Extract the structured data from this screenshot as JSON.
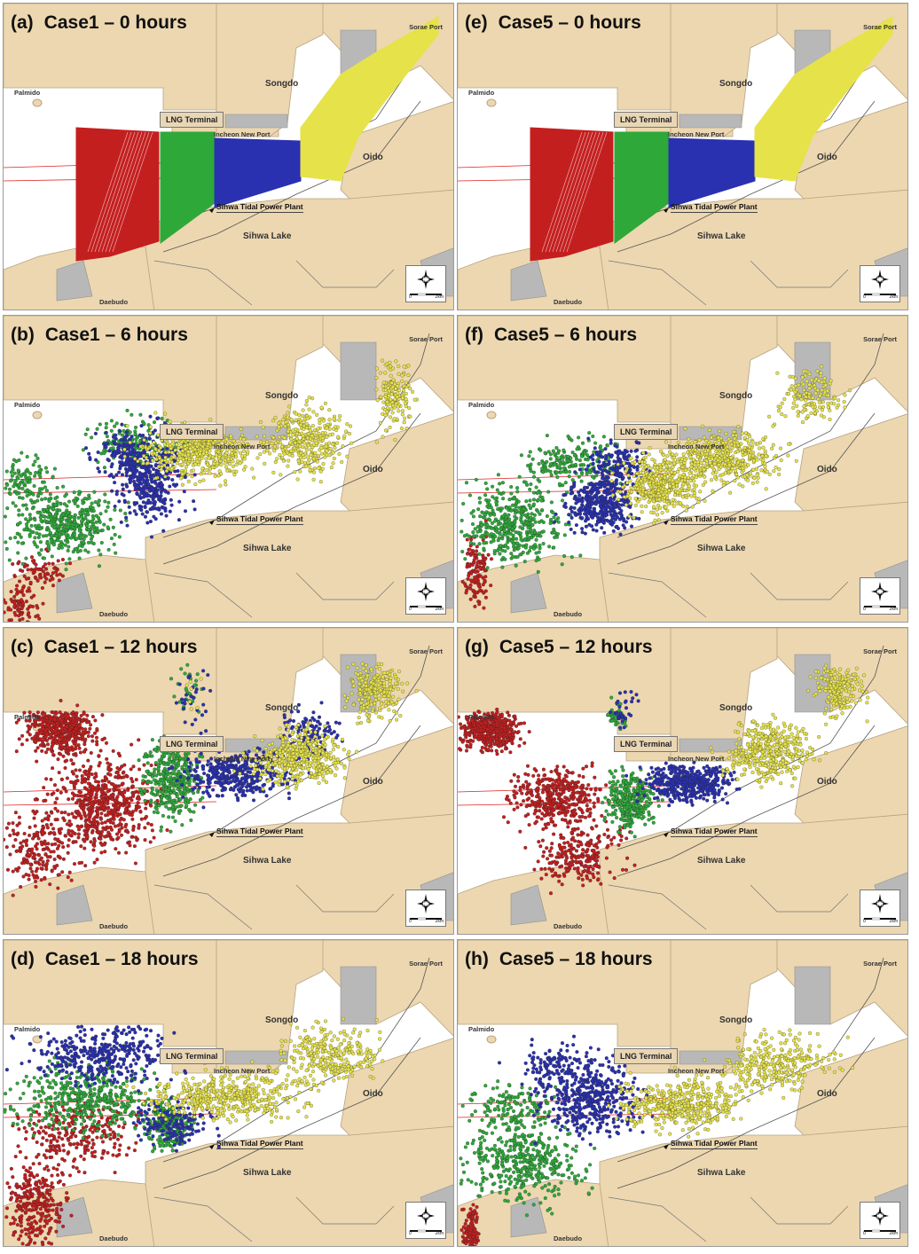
{
  "colors": {
    "land": "#ecd7b0",
    "land_outline": "#b7a27f",
    "port": "#b8b8b8",
    "water": "#ffffff",
    "red": "#c41f1f",
    "green": "#2fa83a",
    "blue": "#2a31b0",
    "yellow": "#e6e24a"
  },
  "labels": {
    "palmido": "Palmido",
    "sorae_port": "Sorae Port",
    "songdo": "Songdo",
    "lng_terminal": "LNG Terminal",
    "incheon_new_port": "Incheon New Port",
    "oido": "Oido",
    "sihwa_plant": "Sihwa Tidal Power Plant",
    "sihwa_lake": "Sihwa Lake",
    "daebudo": "Daebudo",
    "scale_zero": "0",
    "scale_km": "2km"
  },
  "panels": [
    {
      "id": "(a)",
      "title": "Case1 – 0 hours",
      "stage": 0,
      "case": 1
    },
    {
      "id": "(e)",
      "title": "Case5 – 0 hours",
      "stage": 0,
      "case": 5
    },
    {
      "id": "(b)",
      "title": "Case1 – 6 hours",
      "stage": 1,
      "case": 1
    },
    {
      "id": "(f)",
      "title": "Case5 – 6 hours",
      "stage": 1,
      "case": 5
    },
    {
      "id": "(c)",
      "title": "Case1 – 12 hours",
      "stage": 2,
      "case": 1
    },
    {
      "id": "(g)",
      "title": "Case5 – 12 hours",
      "stage": 2,
      "case": 5
    },
    {
      "id": "(d)",
      "title": "Case1 – 18 hours",
      "stage": 3,
      "case": 1
    },
    {
      "id": "(h)",
      "title": "Case5 – 18 hours",
      "stage": 3,
      "case": 5
    }
  ]
}
